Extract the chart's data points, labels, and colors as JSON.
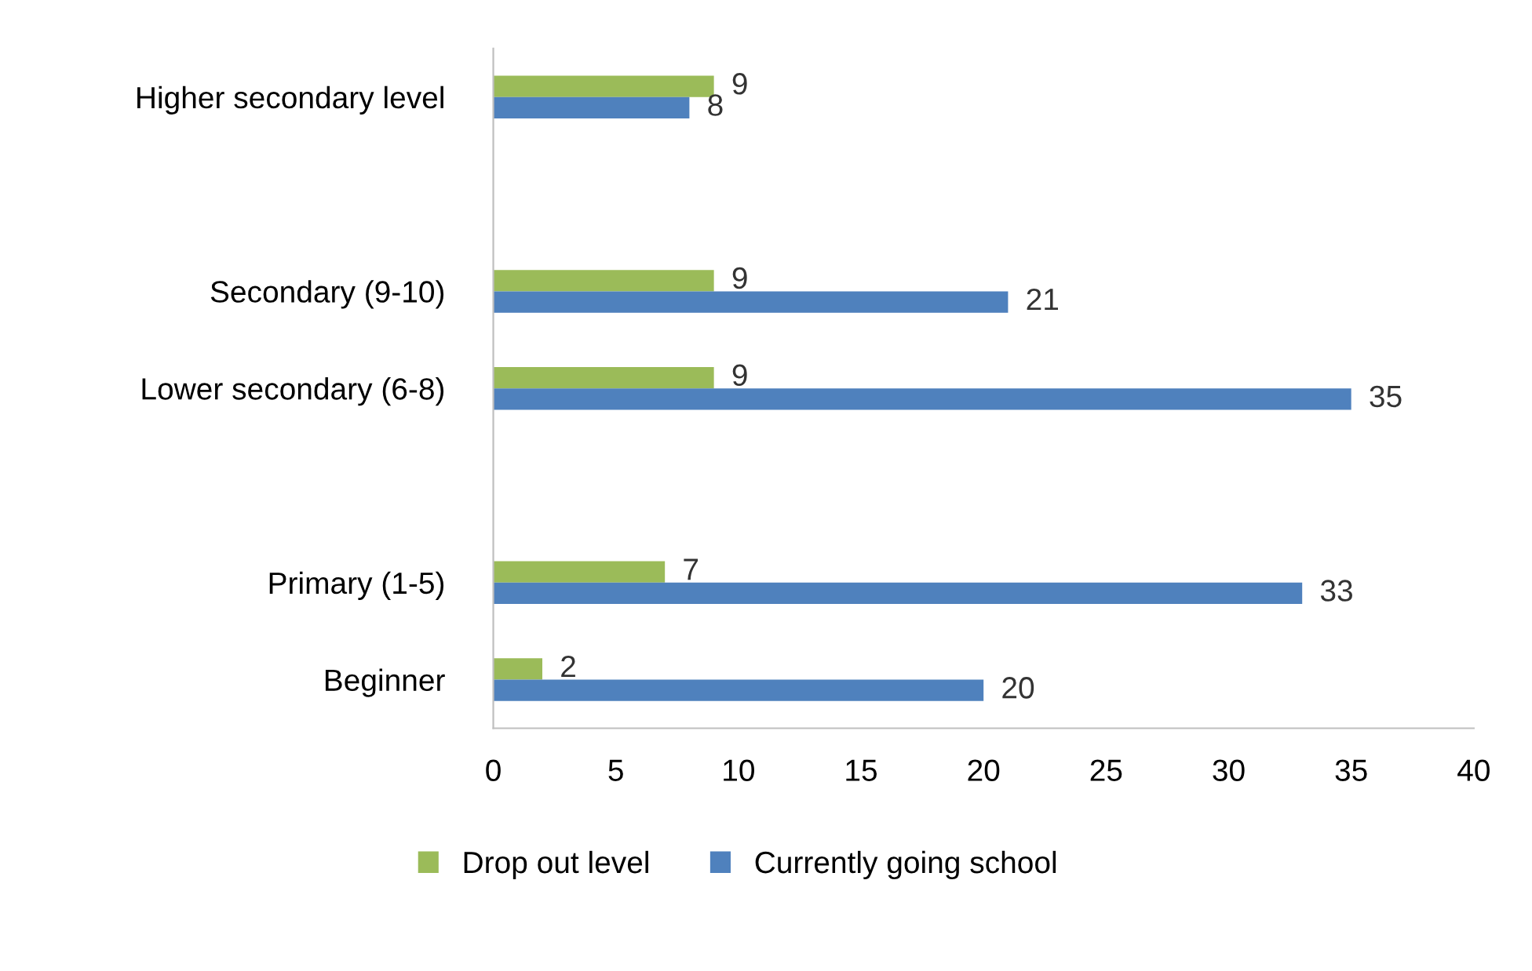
{
  "chart_data": {
    "type": "bar",
    "orientation": "horizontal",
    "categories": [
      "Higher secondary level",
      null,
      "Secondary (9-10)",
      "Lower secondary (6-8)",
      null,
      "Primary (1-5)",
      "Beginner"
    ],
    "series": [
      {
        "name": "Drop out level",
        "color": "#9bbb59",
        "values": [
          9,
          null,
          9,
          9,
          null,
          7,
          2
        ]
      },
      {
        "name": "Currently going school",
        "color": "#4f81bd",
        "values": [
          8,
          null,
          21,
          35,
          null,
          33,
          20
        ]
      }
    ],
    "xlim": [
      0,
      40
    ],
    "xticks": [
      0,
      5,
      10,
      15,
      20,
      25,
      30,
      35,
      40
    ],
    "grid": false,
    "legend": "bottom",
    "data_labels": true
  }
}
